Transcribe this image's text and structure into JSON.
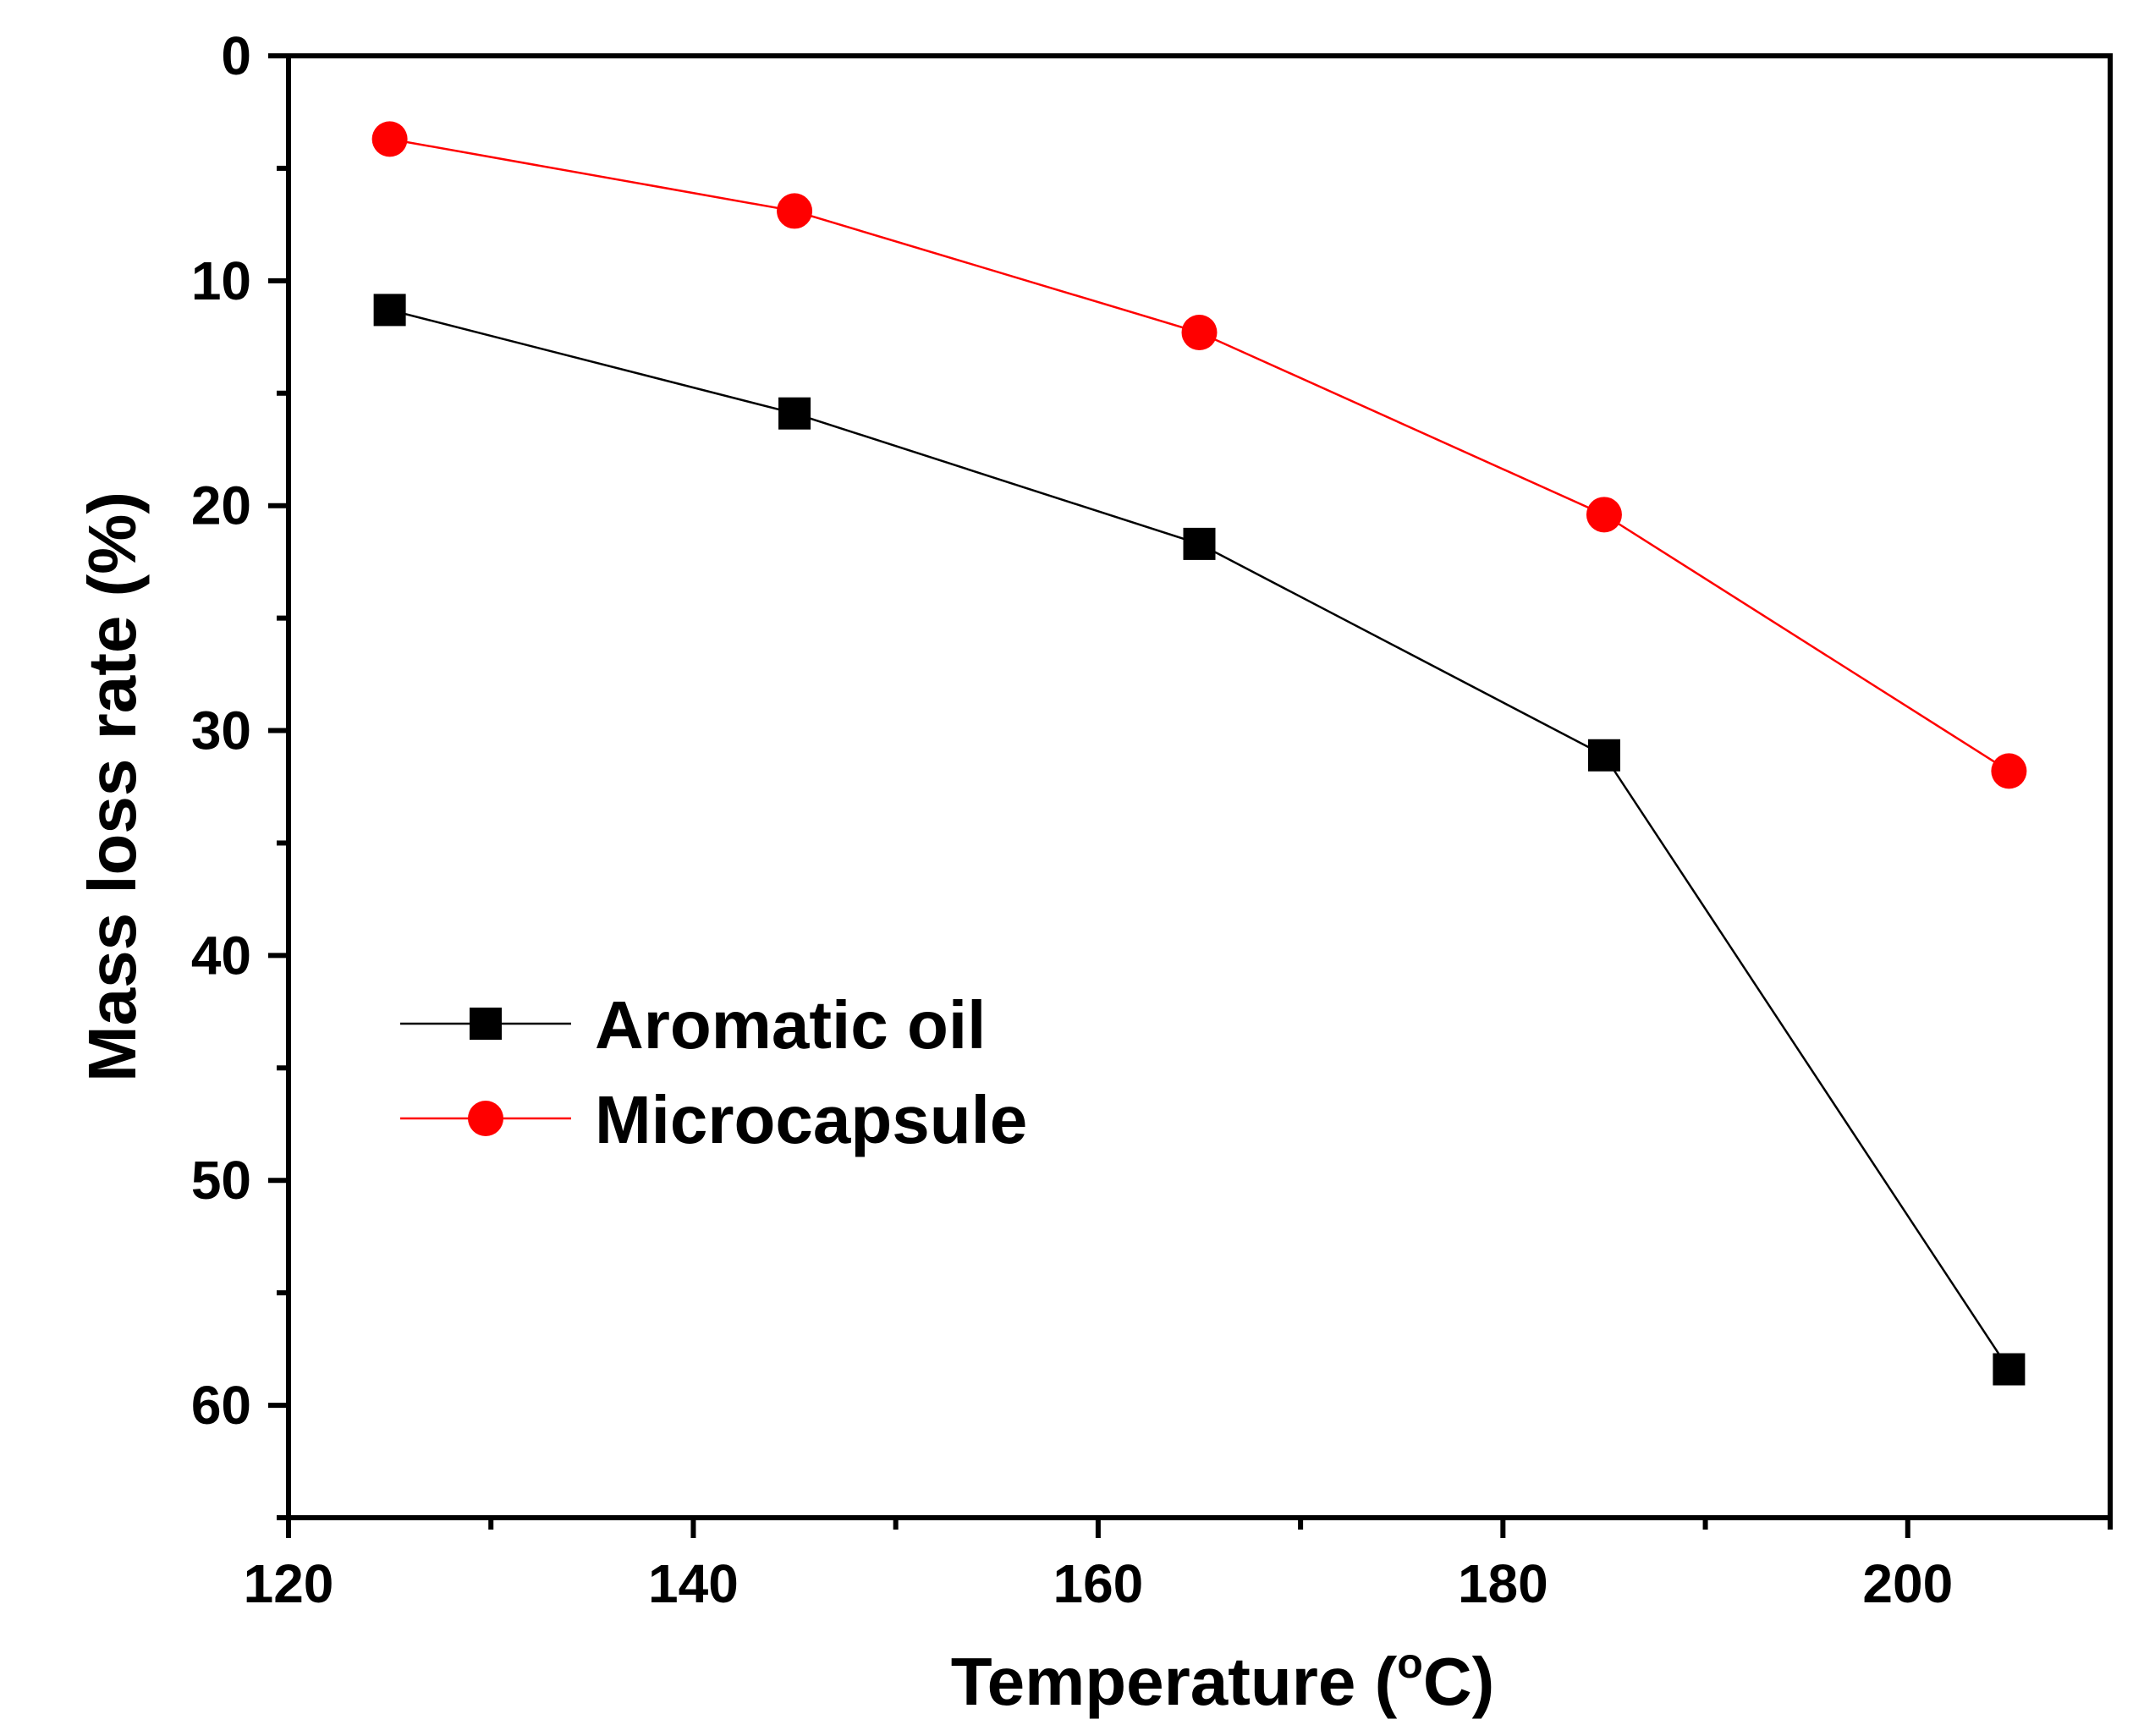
{
  "chart_data": {
    "type": "line",
    "title": "",
    "xlabel": "Temperature (°C)",
    "xlabel_parts": {
      "main": "Temperature (",
      "sup": "o",
      "unit": "C)"
    },
    "ylabel": "Mass loss rate (%)",
    "xlim": [
      120,
      210
    ],
    "ylim": [
      0,
      65
    ],
    "y_inverted": true,
    "x_ticks": [
      120,
      140,
      160,
      180,
      200
    ],
    "x_minor_ticks": [
      130,
      150,
      170,
      190,
      210
    ],
    "y_ticks": [
      0,
      10,
      20,
      30,
      40,
      50,
      60
    ],
    "y_minor_ticks": [
      5,
      15,
      25,
      35,
      45,
      55,
      65
    ],
    "grid": false,
    "legend_position": "center-left",
    "series": [
      {
        "name": "Aromatic oil",
        "color": "#000000",
        "marker": "square",
        "x": [
          125,
          145,
          165,
          185,
          205
        ],
        "y": [
          11.3,
          15.9,
          21.7,
          31.1,
          58.4
        ]
      },
      {
        "name": "Microcapsule",
        "color": "#ff0000",
        "marker": "circle",
        "x": [
          125,
          145,
          165,
          185,
          205
        ],
        "y": [
          3.7,
          6.9,
          12.3,
          20.4,
          31.8
        ]
      }
    ]
  }
}
